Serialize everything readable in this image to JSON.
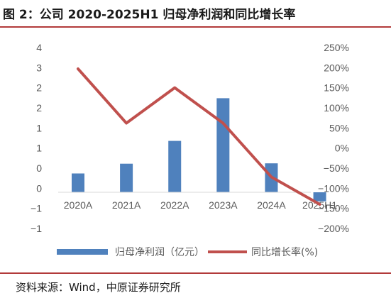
{
  "figure": {
    "title": "图 2：公司 2020-2025H1 归母净利润和同比增长率",
    "source": "资料来源：Wind，中原证券研究所",
    "colors": {
      "bar": "#4f81bd",
      "line": "#c0504d",
      "rule": "#b23a3a"
    }
  },
  "chart_data": {
    "type": "bar",
    "categories": [
      "2020A",
      "2021A",
      "2022A",
      "2023A",
      "2024A",
      "2025H1"
    ],
    "series": [
      {
        "name": "归母净利润（亿元）",
        "type": "bar",
        "axis": "left",
        "values": [
          0.52,
          0.79,
          1.42,
          2.6,
          0.8,
          -0.25
        ]
      },
      {
        "name": "同比增长率(%)",
        "type": "line",
        "axis": "right",
        "values": [
          197,
          62,
          150,
          62,
          -72,
          -140
        ]
      }
    ],
    "y_left": {
      "min": -1,
      "max": 4,
      "tick_labels": [
        "4",
        "3",
        "2",
        "2",
        "1",
        "1",
        "0",
        "0",
        "−1",
        "−1"
      ]
    },
    "y_right": {
      "min": -200,
      "max": 250,
      "tick_labels": [
        "250%",
        "200%",
        "150%",
        "100%",
        "50%",
        "0%",
        "−50%",
        "−100%",
        "−150%",
        "−200%"
      ]
    },
    "grid": false,
    "legend_position": "bottom"
  }
}
